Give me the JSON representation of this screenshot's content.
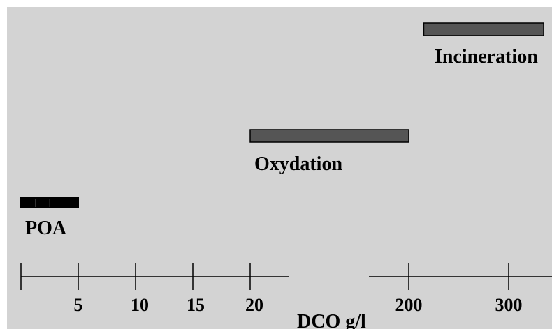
{
  "chart_data": {
    "type": "bar",
    "orientation": "horizontal-range",
    "xlabel": "DCO g/l",
    "axis_break": {
      "from": 20,
      "to": 200
    },
    "axis_segments": [
      {
        "range": [
          0,
          20
        ],
        "ticks": [
          0,
          5,
          10,
          15,
          20
        ]
      },
      {
        "range": [
          200,
          300
        ],
        "ticks": [
          200,
          300
        ]
      }
    ],
    "tick_labels": [
      "5",
      "10",
      "15",
      "20",
      "200",
      "300"
    ],
    "series": [
      {
        "name": "Incineration",
        "range": [
          215,
          335
        ],
        "color": "#555555",
        "pattern": "solid"
      },
      {
        "name": "Oxydation",
        "range": [
          20,
          200
        ],
        "color": "#555555",
        "pattern": "solid"
      },
      {
        "name": "POA",
        "range": [
          0,
          5
        ],
        "color": "#000000",
        "pattern": "dashed"
      }
    ]
  },
  "colors": {
    "background": "#d3d3d3",
    "bar": "#555555",
    "bar_border": "#000000",
    "poa_bar": "#000000",
    "axis": "#000000"
  }
}
